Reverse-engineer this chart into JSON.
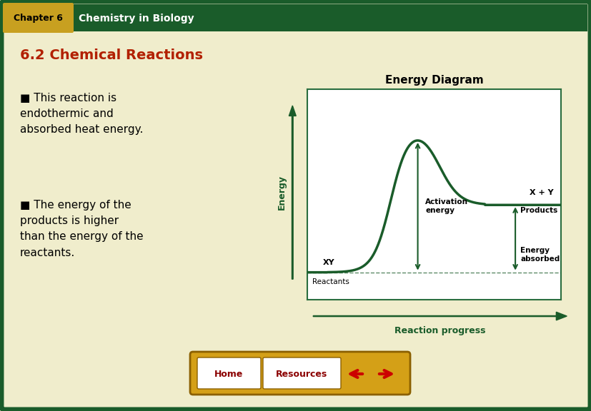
{
  "page_bg": "#f0edcc",
  "header_bg": "#1a5c2a",
  "header_chapter_bg": "#c8a020",
  "header_chapter_text": "Chapter 6",
  "header_title_text": "Chemistry in Biology",
  "section_title": "6.2 Chemical Reactions",
  "section_title_color": "#b22000",
  "bullet1": "■ This reaction is\nendothermic and\nabsorbed heat energy.",
  "bullet2": "■ The energy of the\nproducts is higher\nthan the energy of the\nreactants.",
  "diagram_title": "Energy Diagram",
  "diagram_xlabel": "Reaction progress",
  "diagram_ylabel": "Energy",
  "diagram_bg": "#ffffff",
  "diagram_border_color": "#2a6e3f",
  "curve_color": "#1a5c2a",
  "arrow_color": "#1a5c2a",
  "label_reactants": "Reactants",
  "label_xy": "XY",
  "label_xplusy": "X + Y",
  "label_products": "Products",
  "label_activation": "Activation\nenergy",
  "label_energy_absorbed": "Energy\nabsorbed",
  "reactant_level": 0.13,
  "product_level": 0.45,
  "peak_level": 0.83,
  "outer_border_color": "#1a5c2a",
  "btn_bg": "#d4a017",
  "btn_text_color": "#8B0000",
  "btn_border_color": "#8B6000"
}
